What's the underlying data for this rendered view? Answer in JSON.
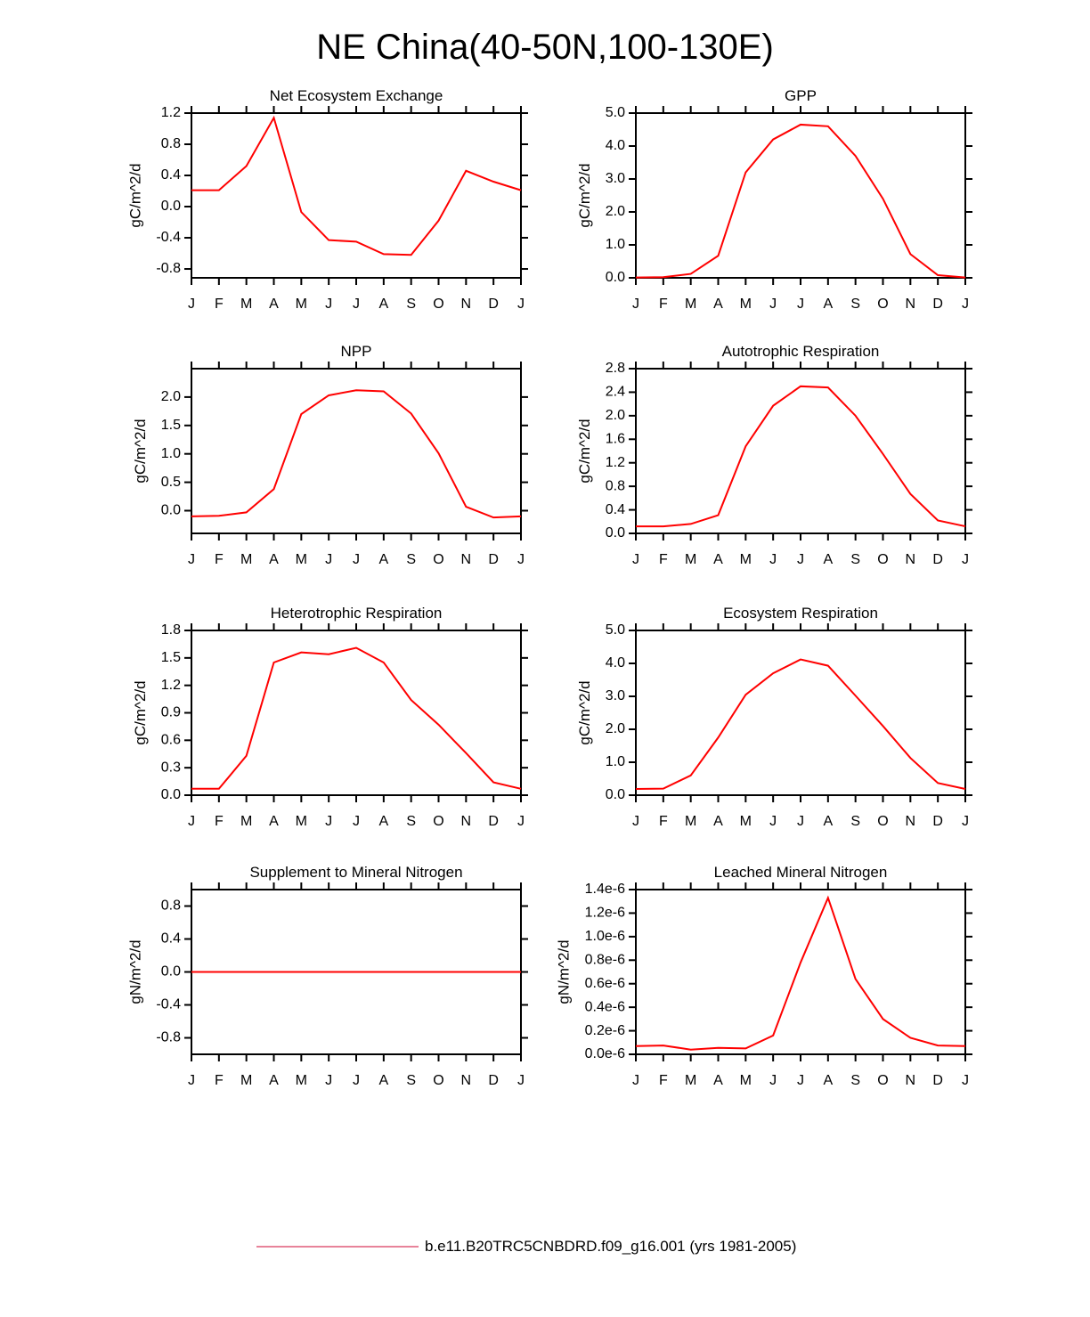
{
  "title": "NE China(40-50N,100-130E)",
  "legend": {
    "label": "b.e11.B20TRC5CNBDRD.f09_g16.001 (yrs 1981-2005)",
    "color": "#e05a78"
  },
  "chart_data": [
    {
      "type": "line",
      "title": "Net Ecosystem Exchange",
      "ylabel": "gC/m^2/d",
      "color": "#ff0000",
      "categories": [
        "J",
        "F",
        "M",
        "A",
        "M",
        "J",
        "J",
        "A",
        "S",
        "O",
        "N",
        "D",
        "J"
      ],
      "values": [
        0.21,
        0.21,
        0.52,
        1.14,
        -0.07,
        -0.43,
        -0.45,
        -0.61,
        -0.62,
        -0.18,
        0.46,
        0.32,
        0.21
      ],
      "ylim": [
        -0.914,
        1.2
      ],
      "yticks": [
        -0.8,
        -0.4,
        {
          "value": 0,
          "label": "0.0"
        },
        0.4,
        0.8,
        1.2
      ]
    },
    {
      "type": "line",
      "title": "GPP",
      "ylabel": "gC/m^2/d",
      "color": "#ff0000",
      "categories": [
        "J",
        "F",
        "M",
        "A",
        "M",
        "J",
        "J",
        "A",
        "S",
        "O",
        "N",
        "D",
        "J"
      ],
      "values": [
        0.01,
        0.02,
        0.12,
        0.67,
        3.2,
        4.2,
        4.65,
        4.6,
        3.7,
        2.4,
        0.72,
        0.08,
        0.01
      ],
      "ylim": [
        0,
        5
      ],
      "yticks": [
        {
          "value": 0,
          "label": "0.0"
        },
        {
          "value": 1,
          "label": "1.0"
        },
        {
          "value": 2,
          "label": "2.0"
        },
        {
          "value": 3,
          "label": "3.0"
        },
        {
          "value": 4,
          "label": "4.0"
        },
        {
          "value": 5,
          "label": "5.0"
        }
      ]
    },
    {
      "type": "line",
      "title": "NPP",
      "ylabel": "gC/m^2/d",
      "color": "#ff0000",
      "categories": [
        "J",
        "F",
        "M",
        "A",
        "M",
        "J",
        "J",
        "A",
        "S",
        "O",
        "N",
        "D",
        "J"
      ],
      "values": [
        -0.1,
        -0.09,
        -0.03,
        0.38,
        1.7,
        2.03,
        2.12,
        2.1,
        1.71,
        1.01,
        0.07,
        -0.12,
        -0.1
      ],
      "ylim": [
        -0.4,
        2.5
      ],
      "yticks": [
        {
          "value": 0,
          "label": "0.0"
        },
        0.5,
        {
          "value": 1,
          "label": "1.0"
        },
        1.5,
        {
          "value": 2,
          "label": "2.0"
        }
      ]
    },
    {
      "type": "line",
      "title": "Autotrophic Respiration",
      "ylabel": "gC/m^2/d",
      "color": "#ff0000",
      "categories": [
        "J",
        "F",
        "M",
        "A",
        "M",
        "J",
        "J",
        "A",
        "S",
        "O",
        "N",
        "D",
        "J"
      ],
      "values": [
        0.12,
        0.12,
        0.16,
        0.31,
        1.48,
        2.17,
        2.5,
        2.48,
        2.0,
        1.35,
        0.67,
        0.22,
        0.12
      ],
      "ylim": [
        0,
        2.8
      ],
      "yticks": [
        {
          "value": 0,
          "label": "0.0"
        },
        0.4,
        0.8,
        1.2,
        1.6,
        {
          "value": 2,
          "label": "2.0"
        },
        2.4,
        2.8
      ]
    },
    {
      "type": "line",
      "title": "Heterotrophic Respiration",
      "ylabel": "gC/m^2/d",
      "color": "#ff0000",
      "categories": [
        "J",
        "F",
        "M",
        "A",
        "M",
        "J",
        "J",
        "A",
        "S",
        "O",
        "N",
        "D",
        "J"
      ],
      "values": [
        0.07,
        0.07,
        0.43,
        1.45,
        1.56,
        1.54,
        1.61,
        1.45,
        1.04,
        0.77,
        0.46,
        0.14,
        0.07
      ],
      "ylim": [
        0,
        1.8
      ],
      "yticks": [
        {
          "value": 0,
          "label": "0.0"
        },
        0.3,
        0.6,
        0.9,
        1.2,
        1.5,
        1.8
      ]
    },
    {
      "type": "line",
      "title": "Ecosystem Respiration",
      "ylabel": "gC/m^2/d",
      "color": "#ff0000",
      "categories": [
        "J",
        "F",
        "M",
        "A",
        "M",
        "J",
        "J",
        "A",
        "S",
        "O",
        "N",
        "D",
        "J"
      ],
      "values": [
        0.19,
        0.2,
        0.6,
        1.75,
        3.05,
        3.7,
        4.12,
        3.93,
        3.02,
        2.1,
        1.13,
        0.37,
        0.19
      ],
      "ylim": [
        0,
        5
      ],
      "yticks": [
        {
          "value": 0,
          "label": "0.0"
        },
        {
          "value": 1,
          "label": "1.0"
        },
        {
          "value": 2,
          "label": "2.0"
        },
        {
          "value": 3,
          "label": "3.0"
        },
        {
          "value": 4,
          "label": "4.0"
        },
        {
          "value": 5,
          "label": "5.0"
        }
      ]
    },
    {
      "type": "line",
      "title": "Supplement to Mineral Nitrogen",
      "ylabel": "gN/m^2/d",
      "color": "#ff0000",
      "categories": [
        "J",
        "F",
        "M",
        "A",
        "M",
        "J",
        "J",
        "A",
        "S",
        "O",
        "N",
        "D",
        "J"
      ],
      "values": [
        0,
        0,
        0,
        0,
        0,
        0,
        0,
        0,
        0,
        0,
        0,
        0,
        0
      ],
      "ylim": [
        -1,
        1
      ],
      "yticks": [
        -0.8,
        -0.4,
        {
          "value": 0,
          "label": "0.0"
        },
        0.4,
        0.8
      ]
    },
    {
      "type": "line",
      "title": "Leached Mineral Nitrogen",
      "ylabel": "gN/m^2/d",
      "color": "#ff0000",
      "categories": [
        "J",
        "F",
        "M",
        "A",
        "M",
        "J",
        "J",
        "A",
        "S",
        "O",
        "N",
        "D",
        "J"
      ],
      "values": [
        7e-08,
        7.5e-08,
        4e-08,
        5.5e-08,
        5e-08,
        1.6e-07,
        7.8e-07,
        1.33e-06,
        6.4e-07,
        3e-07,
        1.4e-07,
        7.5e-08,
        7e-08
      ],
      "ylim": [
        0,
        1.4e-06
      ],
      "yticks": [
        {
          "value": 0,
          "label": "0.0e-6"
        },
        {
          "value": 2e-07,
          "label": "0.2e-6"
        },
        {
          "value": 4e-07,
          "label": "0.4e-6"
        },
        {
          "value": 6e-07,
          "label": "0.6e-6"
        },
        {
          "value": 8e-07,
          "label": "0.8e-6"
        },
        {
          "value": 1e-06,
          "label": "1.0e-6"
        },
        {
          "value": 1.2e-06,
          "label": "1.2e-6"
        },
        {
          "value": 1.4e-06,
          "label": "1.4e-6"
        }
      ]
    }
  ]
}
